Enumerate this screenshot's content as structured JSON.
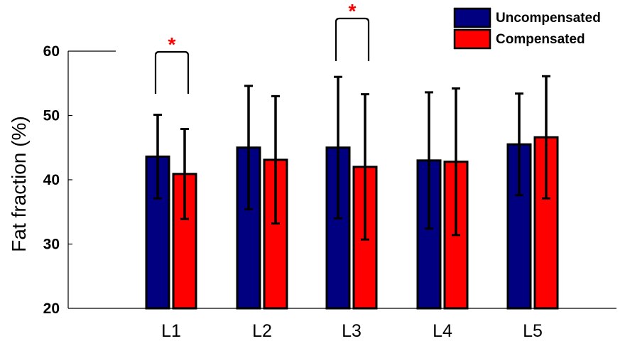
{
  "chart_data": {
    "type": "bar",
    "ylabel": "Fat fraction (%)",
    "xlabel": "",
    "ylim": [
      20,
      60
    ],
    "yticks": [
      20,
      30,
      40,
      50,
      60
    ],
    "categories": [
      "L1",
      "L2",
      "L3",
      "L4",
      "L5"
    ],
    "series": [
      {
        "name": "Uncompensated",
        "color": "#000080",
        "values": [
          43.6,
          45.0,
          45.0,
          43.0,
          45.5
        ],
        "error": [
          6.5,
          9.6,
          11.0,
          10.6,
          7.9
        ]
      },
      {
        "name": "Compensated",
        "color": "#ff0000",
        "values": [
          40.9,
          43.1,
          42.0,
          42.8,
          46.6
        ],
        "error": [
          7.0,
          9.9,
          11.3,
          11.4,
          9.5
        ]
      }
    ],
    "legend_position": "top-right",
    "significance": [
      {
        "category": "L1",
        "label": "*",
        "color": "#ff0000"
      },
      {
        "category": "L3",
        "label": "*",
        "color": "#ff0000"
      }
    ]
  }
}
